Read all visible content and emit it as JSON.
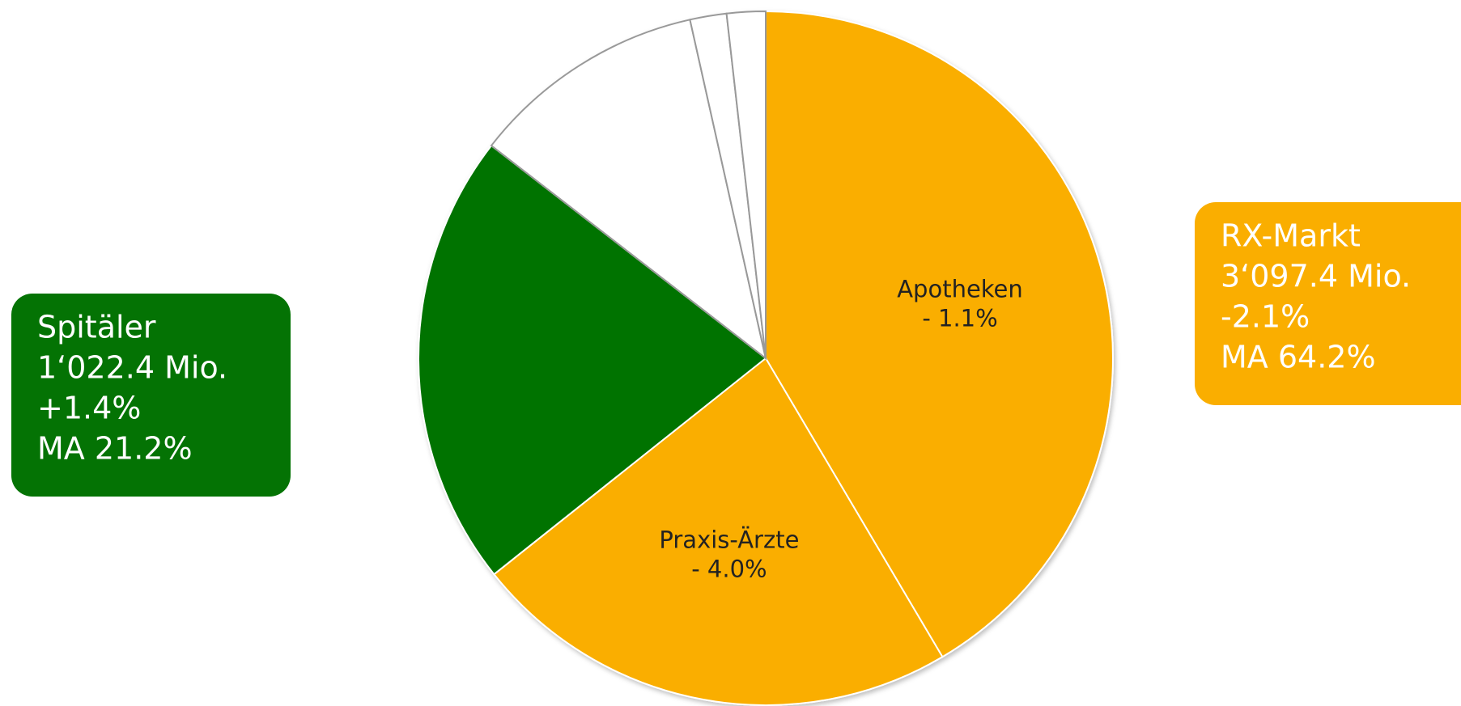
{
  "chart_data": {
    "type": "pie",
    "categories": [
      "Apotheken",
      "Praxis-Ärzte",
      null,
      null,
      null,
      null
    ],
    "values": [
      41.5,
      22.8,
      21.2,
      11.0,
      1.7,
      1.8
    ],
    "colors": [
      "#FAAE00",
      "#FAAE00",
      "#047304",
      "#FFFFFF",
      "#FFFFFF",
      "#FFFFFF"
    ],
    "slice_changes": [
      "- 1.1%",
      "- 4.0%",
      null,
      null,
      null,
      null
    ],
    "annotations": [
      {
        "lines": [
          "Spitäler",
          "1‘022.4 Mio.",
          "+1.4%",
          "MA 21.2%"
        ],
        "color": "#047304"
      },
      {
        "lines": [
          "RX-Markt",
          "3‘097.4 Mio.",
          "-2.1%",
          "MA 64.2%"
        ],
        "color": "#FAAE00"
      }
    ]
  }
}
